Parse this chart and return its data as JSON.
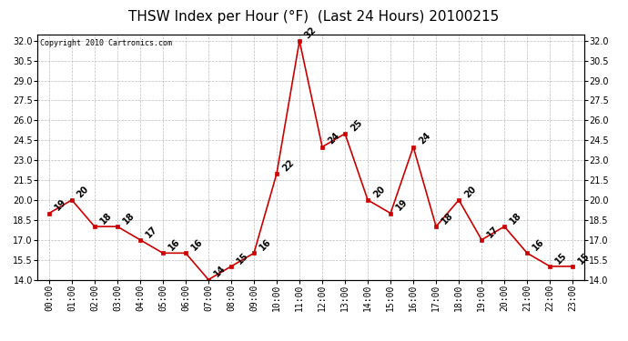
{
  "title": "THSW Index per Hour (°F)  (Last 24 Hours) 20100215",
  "copyright": "Copyright 2010 Cartronics.com",
  "hours": [
    0,
    1,
    2,
    3,
    4,
    5,
    6,
    7,
    8,
    9,
    10,
    11,
    12,
    13,
    14,
    15,
    16,
    17,
    18,
    19,
    20,
    21,
    22,
    23
  ],
  "values": [
    19,
    20,
    18,
    18,
    17,
    16,
    16,
    14,
    15,
    16,
    22,
    32,
    24,
    25,
    20,
    19,
    24,
    18,
    20,
    17,
    18,
    16,
    15,
    15
  ],
  "xlabels": [
    "00:00",
    "01:00",
    "02:00",
    "03:00",
    "04:00",
    "05:00",
    "06:00",
    "07:00",
    "08:00",
    "09:00",
    "10:00",
    "11:00",
    "12:00",
    "13:00",
    "14:00",
    "15:00",
    "16:00",
    "17:00",
    "18:00",
    "19:00",
    "20:00",
    "21:00",
    "22:00",
    "23:00"
  ],
  "ylim": [
    14.0,
    32.5
  ],
  "yticks": [
    14.0,
    15.5,
    17.0,
    18.5,
    20.0,
    21.5,
    23.0,
    24.5,
    26.0,
    27.5,
    29.0,
    30.5,
    32.0
  ],
  "line_color": "#cc0000",
  "marker_color": "#cc0000",
  "background_color": "#ffffff",
  "grid_color": "#bbbbbb",
  "title_fontsize": 11,
  "label_fontsize": 7,
  "annot_fontsize": 7,
  "copyright_fontsize": 6
}
